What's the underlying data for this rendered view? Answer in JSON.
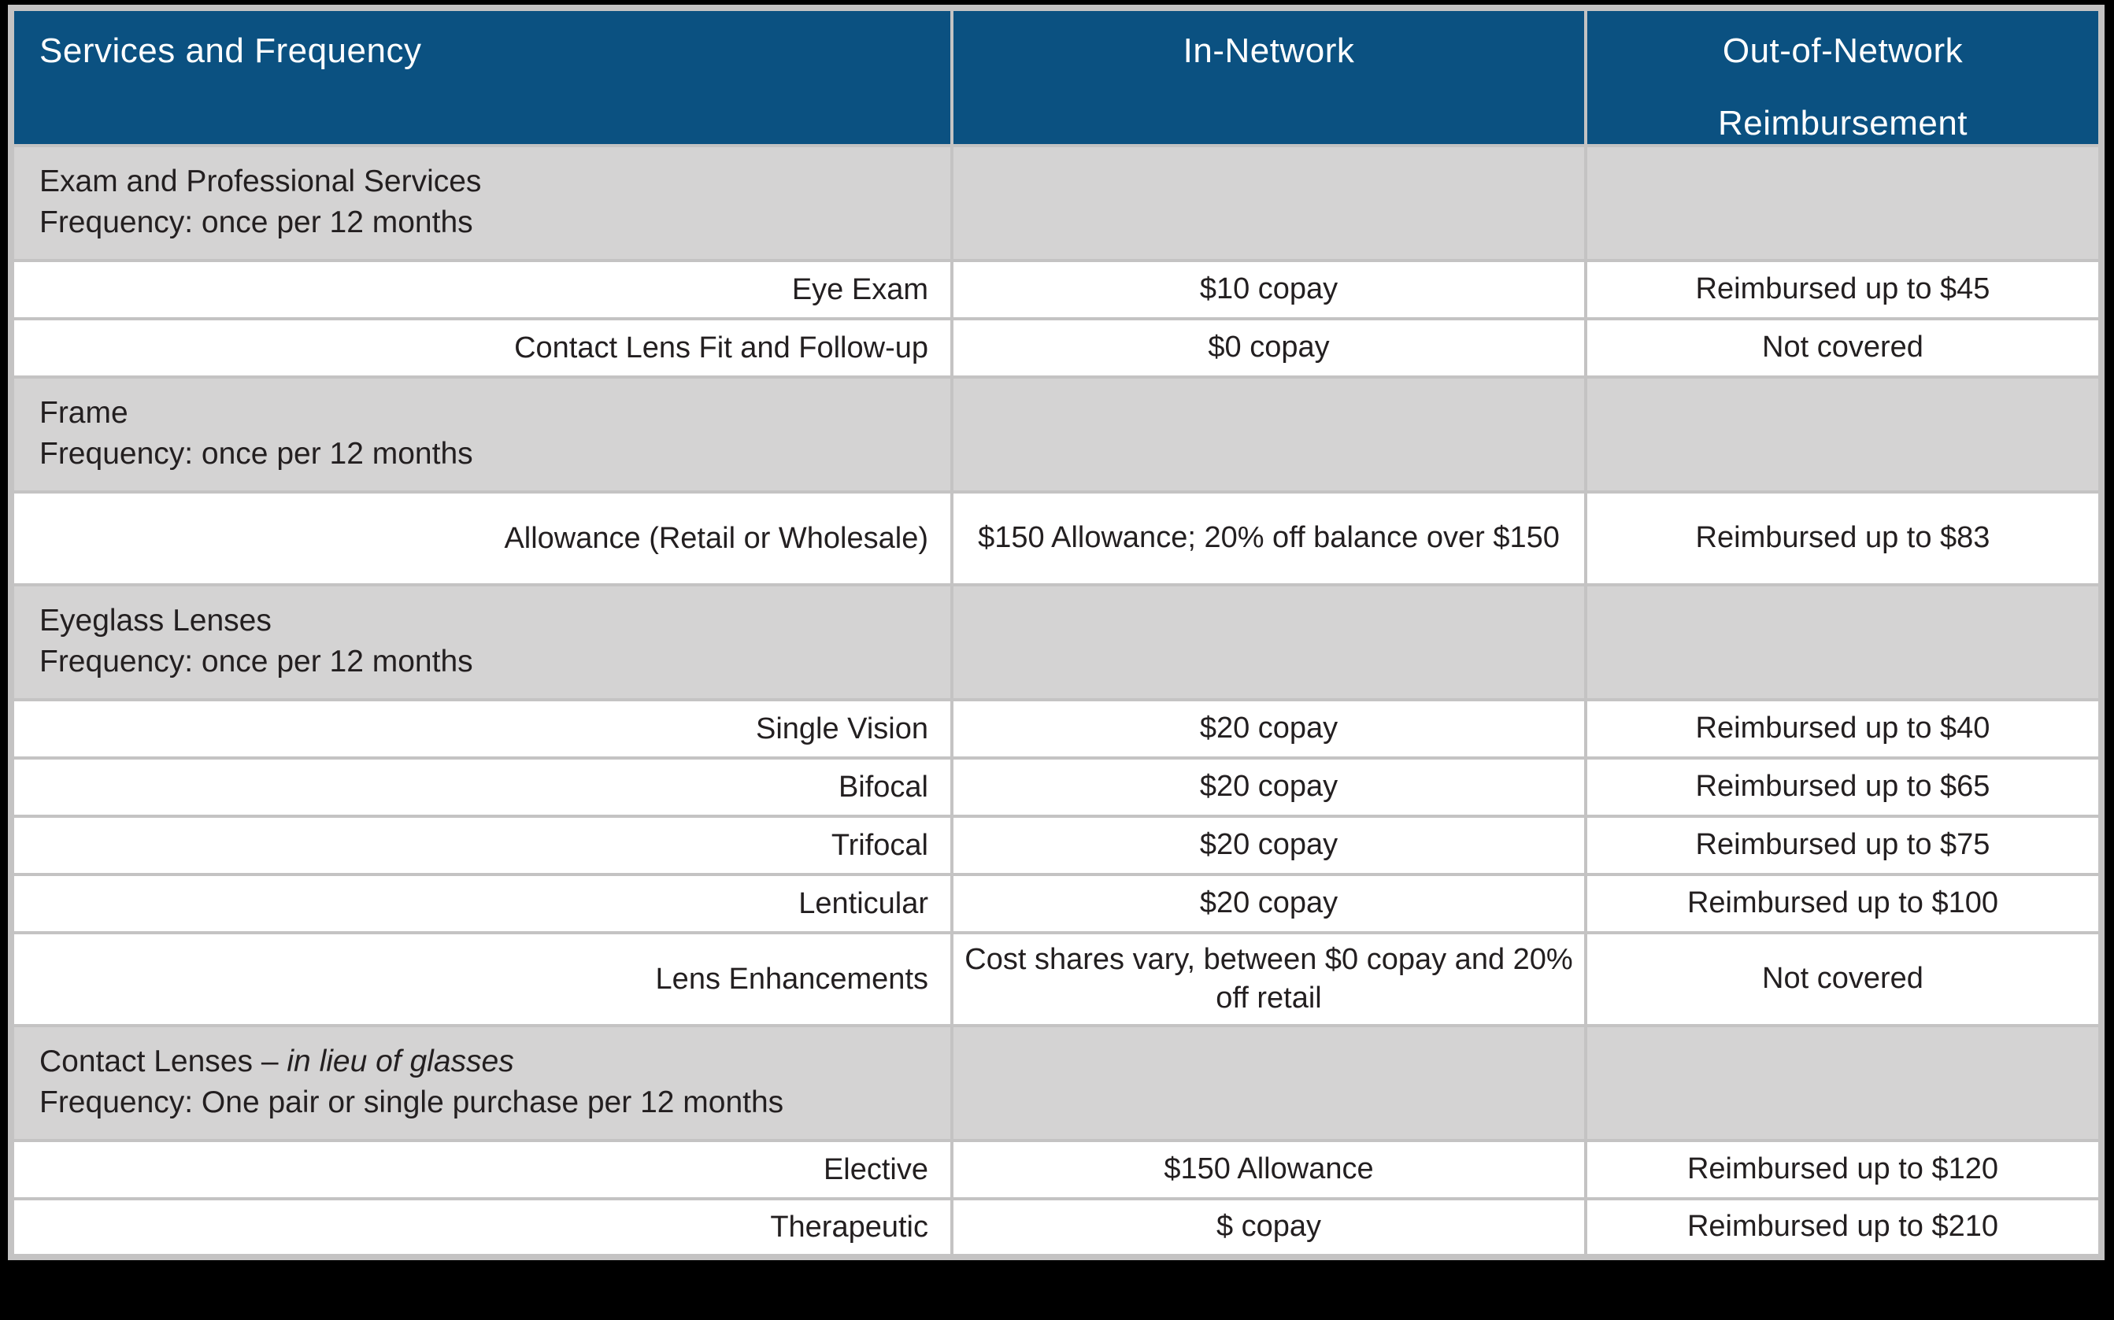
{
  "colors": {
    "page_bg": "#000000",
    "header_bg": "#0b5181",
    "header_text": "#ffffff",
    "section_bg": "#d4d3d3",
    "row_bg": "#ffffff",
    "grid": "#c4c3c3",
    "text": "#231f20"
  },
  "table": {
    "header": {
      "services": "Services and Frequency",
      "in_network": "In-Network",
      "out_of_network_line1": "Out-of-Network",
      "out_of_network_line2": "Reimbursement"
    },
    "rows": [
      {
        "type": "section",
        "line1": "Exam and Professional Services",
        "line2": "Frequency: once per 12 months"
      },
      {
        "type": "item",
        "service": "Eye Exam",
        "in_network": "$10 copay",
        "out_of_network": "Reimbursed up to $45"
      },
      {
        "type": "item",
        "service": "Contact Lens Fit and Follow-up",
        "in_network": "$0 copay",
        "out_of_network": "Not covered"
      },
      {
        "type": "section",
        "line1": "Frame",
        "line2": "Frequency: once per 12 months"
      },
      {
        "type": "item",
        "service": "Allowance (Retail or Wholesale)",
        "in_network": "$150 Allowance; 20% off balance over $150",
        "out_of_network": "Reimbursed up to $83"
      },
      {
        "type": "section",
        "line1": "Eyeglass Lenses",
        "line2": "Frequency: once per 12 months"
      },
      {
        "type": "item",
        "service": "Single Vision",
        "in_network": "$20 copay",
        "out_of_network": "Reimbursed up to $40"
      },
      {
        "type": "item",
        "service": "Bifocal",
        "in_network": "$20 copay",
        "out_of_network": "Reimbursed up to $65"
      },
      {
        "type": "item",
        "service": "Trifocal",
        "in_network": "$20 copay",
        "out_of_network": "Reimbursed up to $75"
      },
      {
        "type": "item",
        "service": "Lenticular",
        "in_network": "$20 copay",
        "out_of_network": "Reimbursed up to $100"
      },
      {
        "type": "item",
        "service": "Lens Enhancements",
        "in_network": "Cost shares vary, between $0 copay and 20% off retail",
        "out_of_network": "Not covered"
      },
      {
        "type": "section",
        "line1_prefix": "Contact Lenses – ",
        "line1_italic": "in lieu of glasses",
        "line2": "Frequency: One pair or single purchase per 12 months"
      },
      {
        "type": "item",
        "service": "Elective",
        "in_network": "$150 Allowance",
        "out_of_network": "Reimbursed up to $120"
      },
      {
        "type": "item",
        "service": "Therapeutic",
        "in_network": "$ copay",
        "out_of_network": "Reimbursed up to $210"
      }
    ]
  }
}
